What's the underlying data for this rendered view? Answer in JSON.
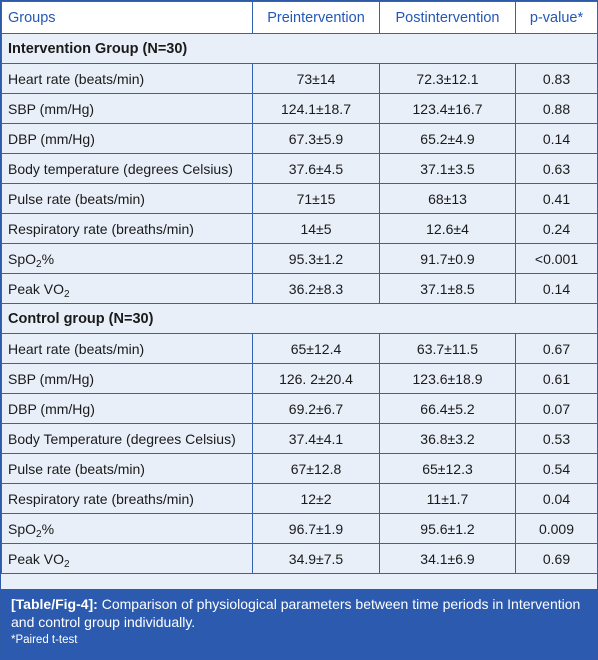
{
  "headers": [
    "Groups",
    "Preintervention",
    "Postintervention",
    "p-value*"
  ],
  "groups": [
    {
      "title": "Intervention Group (N=30)",
      "rows": [
        {
          "param": "Heart rate (beats/min)",
          "pre": "73±14",
          "post": "72.3±12.1",
          "p": "0.83"
        },
        {
          "param": "SBP (mm/Hg)",
          "pre": "124.1±18.7",
          "post": "123.4±16.7",
          "p": "0.88"
        },
        {
          "param": "DBP (mm/Hg)",
          "pre": "67.3±5.9",
          "post": "65.2±4.9",
          "p": "0.14"
        },
        {
          "param": "Body temperature (degrees Celsius)",
          "pre": "37.6±4.5",
          "post": "37.1±3.5",
          "p": "0.63"
        },
        {
          "param": "Pulse rate (beats/min)",
          "pre": "71±15",
          "post": "68±13",
          "p": "0.41"
        },
        {
          "param": "Respiratory rate (breaths/min)",
          "pre": "14±5",
          "post": "12.6±4",
          "p": "0.24"
        },
        {
          "param": "SpO",
          "param_sub": "2",
          "param_suffix": "%",
          "pre": "95.3±1.2",
          "post": "91.7±0.9",
          "p": "<0.001"
        },
        {
          "param": "Peak VO",
          "param_sub": "2",
          "param_suffix": "",
          "pre": "36.2±8.3",
          "post": "37.1±8.5",
          "p": "0.14"
        }
      ]
    },
    {
      "title": "Control group (N=30)",
      "rows": [
        {
          "param": "Heart rate (beats/min)",
          "pre": "65±12.4",
          "post": "63.7±11.5",
          "p": "0.67"
        },
        {
          "param": "SBP (mm/Hg)",
          "pre": "126. 2±20.4",
          "post": "123.6±18.9",
          "p": "0.61"
        },
        {
          "param": "DBP (mm/Hg)",
          "pre": "69.2±6.7",
          "post": "66.4±5.2",
          "p": "0.07"
        },
        {
          "param": "Body Temperature (degrees Celsius)",
          "pre": "37.4±4.1",
          "post": "36.8±3.2",
          "p": "0.53"
        },
        {
          "param": "Pulse rate (beats/min)",
          "pre": "67±12.8",
          "post": "65±12.3",
          "p": "0.54"
        },
        {
          "param": "Respiratory rate (breaths/min)",
          "pre": "12±2",
          "post": "11±1.7",
          "p": "0.04"
        },
        {
          "param": "SpO",
          "param_sub": "2",
          "param_suffix": "%",
          "pre": "96.7±1.9",
          "post": "95.6±1.2",
          "p": "0.009"
        },
        {
          "param": "Peak VO",
          "param_sub": "2",
          "param_suffix": "",
          "pre": "34.9±7.5",
          "post": "34.1±6.9",
          "p": "0.69"
        }
      ]
    }
  ],
  "caption": {
    "label": "[Table/Fig-4]:",
    "text": " Comparison of physiological parameters between time periods in Intervention and control group individually.",
    "footnote": "*Paired t-test"
  },
  "colors": {
    "header_text": "#2358b8",
    "border": "#3563b0",
    "row_bg": "#e9eff9",
    "caption_bg": "#2b5aae"
  }
}
